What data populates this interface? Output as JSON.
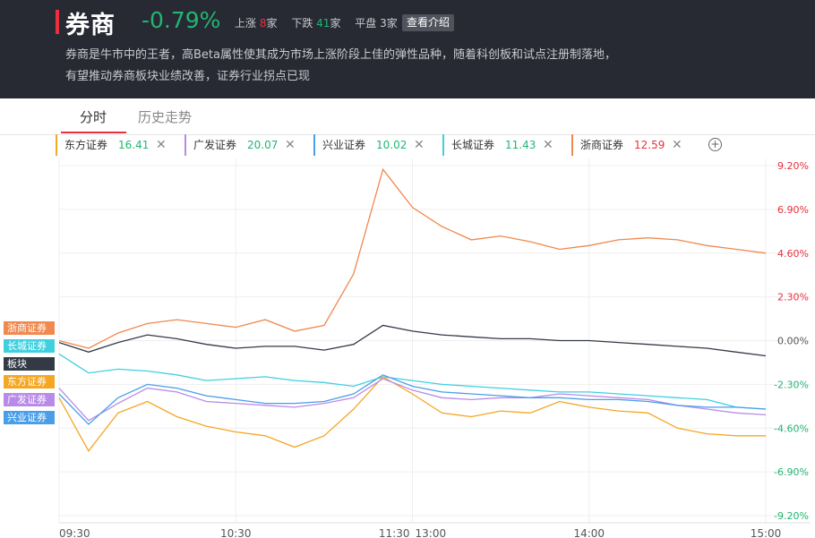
{
  "header": {
    "title": "券商",
    "change": "-0.79%",
    "up_label": "上涨",
    "up_count": "8",
    "down_label": "下跌",
    "down_count": "41",
    "flat_label": "平盘",
    "flat_count": "3",
    "unit": "家",
    "intro_button": "查看介绍",
    "description": "券商是牛市中的王者，高Beta属性使其成为市场上涨阶段上佳的弹性品种，随着科创板和试点注册制落地，有望推动券商板块业绩改善，证券行业拐点已现"
  },
  "tabs": [
    "分时",
    "历史走势"
  ],
  "chips": [
    {
      "name": "东方证券",
      "price": "16.41",
      "color": "#f5a623",
      "price_color": "#22b573"
    },
    {
      "name": "广发证券",
      "price": "20.07",
      "color": "#b98be8",
      "price_color": "#22b573"
    },
    {
      "name": "兴业证券",
      "price": "10.02",
      "color": "#4a9ee8",
      "price_color": "#22b573"
    },
    {
      "name": "长城证券",
      "price": "11.43",
      "color": "#3fd0e0",
      "price_color": "#22b573"
    },
    {
      "name": "浙商证券",
      "price": "12.59",
      "color": "#f08850",
      "price_color": "#e8303e"
    }
  ],
  "icons": {
    "close": "close-icon",
    "add": "plus-circle-icon"
  },
  "chart_data": {
    "type": "line",
    "x_labels": [
      "09:30",
      "10:30",
      "11:30",
      "13:00",
      "14:00",
      "15:00"
    ],
    "y_ticks": [
      "9.20%",
      "6.90%",
      "4.60%",
      "2.30%",
      "0.00%",
      "-2.30%",
      "-4.60%",
      "-6.90%",
      "-9.20%"
    ],
    "ylim": [
      -9.2,
      9.2
    ],
    "y_unit": "%",
    "grid": true,
    "legend_placement": "left",
    "series": [
      {
        "name": "浙商证券",
        "color": "#f08850",
        "values": [
          0.0,
          -0.4,
          0.4,
          0.9,
          1.1,
          0.9,
          0.7,
          1.1,
          0.5,
          0.8,
          3.5,
          9.0,
          7.0,
          6.0,
          5.3,
          5.5,
          5.2,
          4.8,
          5.0,
          5.3,
          5.4,
          5.3,
          5.0,
          4.8,
          4.6
        ]
      },
      {
        "name": "长城证券",
        "color": "#3fd0e0",
        "values": [
          -0.7,
          -1.7,
          -1.5,
          -1.6,
          -1.8,
          -2.1,
          -2.0,
          -1.9,
          -2.1,
          -2.2,
          -2.4,
          -1.9,
          -2.1,
          -2.3,
          -2.4,
          -2.5,
          -2.6,
          -2.7,
          -2.7,
          -2.8,
          -2.9,
          -3.0,
          -3.1,
          -3.5,
          -3.6
        ]
      },
      {
        "name": "板块",
        "color": "#333a46",
        "values": [
          -0.1,
          -0.6,
          -0.1,
          0.3,
          0.1,
          -0.2,
          -0.4,
          -0.3,
          -0.3,
          -0.5,
          -0.2,
          0.8,
          0.5,
          0.3,
          0.2,
          0.1,
          0.1,
          0.0,
          0.0,
          -0.1,
          -0.2,
          -0.3,
          -0.4,
          -0.6,
          -0.8
        ]
      },
      {
        "name": "东方证券",
        "color": "#f5a623",
        "values": [
          -3.0,
          -5.8,
          -3.8,
          -3.2,
          -4.0,
          -4.5,
          -4.8,
          -5.0,
          -5.6,
          -5.0,
          -3.6,
          -1.9,
          -2.8,
          -3.8,
          -4.0,
          -3.7,
          -3.8,
          -3.2,
          -3.5,
          -3.7,
          -3.8,
          -4.6,
          -4.9,
          -5.0,
          -5.0
        ]
      },
      {
        "name": "广发证券",
        "color": "#b98be8",
        "values": [
          -2.5,
          -4.2,
          -3.3,
          -2.5,
          -2.7,
          -3.2,
          -3.3,
          -3.4,
          -3.5,
          -3.3,
          -3.0,
          -2.0,
          -2.6,
          -3.0,
          -3.1,
          -3.0,
          -3.0,
          -2.8,
          -2.9,
          -3.0,
          -3.1,
          -3.4,
          -3.6,
          -3.8,
          -3.9
        ]
      },
      {
        "name": "兴业证券",
        "color": "#4a9ee8",
        "values": [
          -2.8,
          -4.4,
          -3.0,
          -2.3,
          -2.5,
          -2.9,
          -3.1,
          -3.3,
          -3.3,
          -3.2,
          -2.8,
          -1.8,
          -2.4,
          -2.7,
          -2.8,
          -2.9,
          -3.0,
          -3.0,
          -3.1,
          -3.1,
          -3.2,
          -3.4,
          -3.5,
          -3.5,
          -3.6
        ]
      }
    ]
  }
}
